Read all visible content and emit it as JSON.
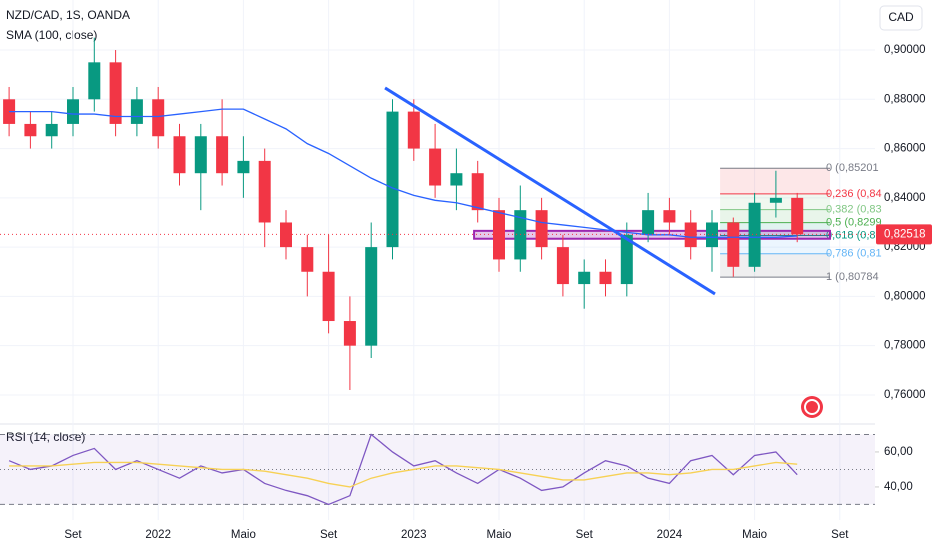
{
  "chart_data": [
    {
      "type": "candlestick",
      "title": "NZD/CAD, 1S, OANDA",
      "currency": "CAD",
      "categories": [
        null,
        null,
        null,
        "Set",
        null,
        null,
        null,
        "2022",
        null,
        null,
        null,
        "Maio",
        null,
        null,
        null,
        "Set",
        null,
        null,
        null,
        "2023",
        null,
        null,
        null,
        "Maio",
        null,
        null,
        null,
        "Set",
        null,
        null,
        null,
        "2024",
        null,
        null,
        null,
        "Maio",
        null,
        null,
        null,
        "Set"
      ],
      "open": [
        0.88,
        0.87,
        0.865,
        0.87,
        0.88,
        0.895,
        0.87,
        0.88,
        0.865,
        0.85,
        0.865,
        0.85,
        0.855,
        0.83,
        0.82,
        0.81,
        0.79,
        0.78,
        0.82,
        0.875,
        0.86,
        0.845,
        0.85,
        0.835,
        0.815,
        0.835,
        0.82,
        0.805,
        0.81,
        0.805,
        0.825,
        0.835,
        0.83,
        0.82,
        0.83,
        0.812,
        0.838,
        0.84,
        null,
        null
      ],
      "high": [
        0.885,
        0.875,
        0.875,
        0.885,
        0.905,
        0.9,
        0.885,
        0.885,
        0.87,
        0.87,
        0.88,
        0.865,
        0.86,
        0.835,
        0.825,
        0.825,
        0.8,
        0.83,
        0.88,
        0.88,
        0.87,
        0.86,
        0.855,
        0.84,
        0.845,
        0.84,
        0.825,
        0.815,
        0.815,
        0.83,
        0.842,
        0.84,
        0.835,
        0.835,
        0.832,
        0.842,
        0.851,
        0.842,
        null,
        null
      ],
      "low": [
        0.865,
        0.86,
        0.86,
        0.865,
        0.875,
        0.865,
        0.865,
        0.86,
        0.845,
        0.835,
        0.845,
        0.84,
        0.82,
        0.815,
        0.8,
        0.785,
        0.762,
        0.775,
        0.815,
        0.855,
        0.84,
        0.835,
        0.83,
        0.81,
        0.81,
        0.815,
        0.8,
        0.795,
        0.8,
        0.8,
        0.822,
        0.825,
        0.815,
        0.81,
        0.808,
        0.81,
        0.832,
        0.822,
        null,
        null
      ],
      "close": [
        0.87,
        0.865,
        0.87,
        0.88,
        0.895,
        0.87,
        0.88,
        0.865,
        0.85,
        0.865,
        0.85,
        0.855,
        0.83,
        0.82,
        0.81,
        0.79,
        0.78,
        0.82,
        0.875,
        0.86,
        0.845,
        0.85,
        0.835,
        0.815,
        0.835,
        0.82,
        0.805,
        0.81,
        0.805,
        0.825,
        0.835,
        0.83,
        0.82,
        0.83,
        0.812,
        0.838,
        0.84,
        0.82518,
        null,
        null
      ],
      "up_color": "#089981",
      "down_color": "#f23645",
      "sma": {
        "name": "SMA (100, close)",
        "color": "#2962ff",
        "values": [
          0.875,
          0.875,
          0.875,
          0.874,
          0.874,
          0.873,
          0.873,
          0.873,
          0.874,
          0.875,
          0.876,
          0.876,
          0.872,
          0.868,
          0.862,
          0.858,
          0.853,
          0.848,
          0.844,
          0.841,
          0.839,
          0.838,
          0.836,
          0.834,
          0.832,
          0.83,
          0.829,
          0.828,
          0.827,
          0.826,
          0.825,
          0.825,
          0.824,
          0.824,
          0.824,
          0.824,
          0.824,
          0.8245,
          null,
          null
        ]
      },
      "last": {
        "value": 0.82518,
        "label": "0,82518",
        "color": "#f23645"
      },
      "ylim": [
        0.7478,
        0.9203
      ],
      "yticks": [
        {
          "value": 0.76,
          "label": "0,76000"
        },
        {
          "value": 0.78,
          "label": "0,78000"
        },
        {
          "value": 0.8,
          "label": "0,80000"
        },
        {
          "value": 0.82,
          "label": "0,82000"
        },
        {
          "value": 0.84,
          "label": "0,84000"
        },
        {
          "value": 0.86,
          "label": "0,86000"
        },
        {
          "value": 0.88,
          "label": "0,88000"
        },
        {
          "value": 0.9,
          "label": "0,90000"
        }
      ],
      "trendline": {
        "x": [
          17.65,
          33.14
        ],
        "y": [
          0.8846,
          0.801
        ],
        "color": "#2962ff"
      },
      "zone": {
        "x": [
          21.83,
          38.54
        ],
        "y": [
          0.8234,
          0.8266
        ],
        "color": "#9c27b0"
      },
      "fib": {
        "x": [
          33.38,
          38.54
        ],
        "levels": [
          {
            "value": 0.85201,
            "label": "0 (0,85201"
          },
          {
            "value": 0.8416,
            "label": "0,236 (0,84"
          },
          {
            "value": 0.8352,
            "label": "0,382 (0,83"
          },
          {
            "value": 0.82993,
            "label": "0,5 (0,8299"
          },
          {
            "value": 0.82471,
            "label": "0,618 (0,82"
          },
          {
            "value": 0.81729,
            "label": "0,786 (0,81"
          },
          {
            "value": 0.80784,
            "label": "1 (0,80784"
          }
        ],
        "colors": [
          "#787b86",
          "#f23645",
          "#81c784",
          "#4caf50",
          "#089981",
          "#64b5f6",
          "#787b86"
        ]
      }
    },
    {
      "type": "line",
      "title": "RSI (14, close)",
      "series": [
        {
          "name": "RSI",
          "color": "#7e57c2",
          "values": [
            55,
            50,
            52,
            58,
            62,
            50,
            55,
            50,
            45,
            52,
            48,
            50,
            42,
            38,
            35,
            30,
            35,
            70,
            60,
            52,
            55,
            48,
            42,
            50,
            45,
            38,
            40,
            48,
            55,
            52,
            45,
            42,
            55,
            58,
            47,
            58,
            60,
            47,
            null,
            null
          ]
        },
        {
          "name": "RSI MA",
          "color": "#f7d154",
          "values": [
            52,
            52,
            52,
            53,
            54,
            54,
            54,
            53,
            52,
            51,
            50,
            50,
            49,
            47,
            45,
            42,
            40,
            45,
            48,
            50,
            52,
            52,
            51,
            50,
            48,
            46,
            44,
            44,
            46,
            48,
            48,
            47,
            48,
            50,
            50,
            52,
            54,
            53,
            null,
            null
          ]
        }
      ],
      "bands": [
        70,
        50,
        30
      ],
      "ylim": [
        21.1,
        75.4
      ],
      "yticks": [
        {
          "value": 40,
          "label": "40,00"
        },
        {
          "value": 60,
          "label": "60,00"
        }
      ]
    }
  ]
}
